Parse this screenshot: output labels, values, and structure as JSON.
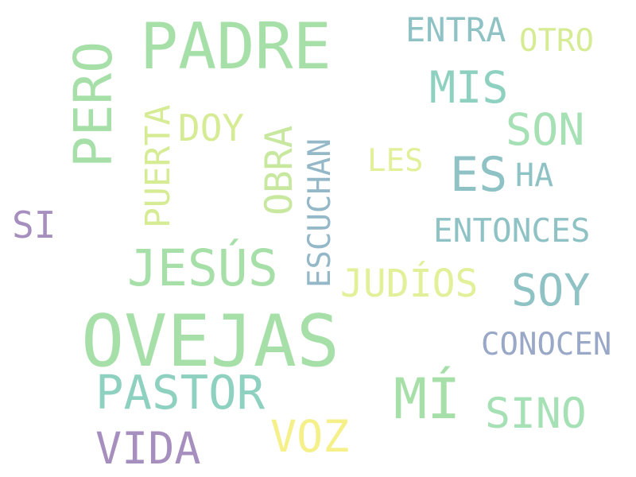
{
  "words": {
    "padre": {
      "text": "PADRE",
      "color": "#a6e0a8"
    },
    "ovejas": {
      "text": "OVEJAS",
      "color": "#a6e0a8"
    },
    "pero": {
      "text": "PERO",
      "color": "#a6e0a8"
    },
    "jesus": {
      "text": "JESÚS",
      "color": "#a6e0a8"
    },
    "pastor": {
      "text": "PASTOR",
      "color": "#8fd1c0"
    },
    "mi": {
      "text": "MÍ",
      "color": "#a6e0a8"
    },
    "vida": {
      "text": "VIDA",
      "color": "#a68fbf"
    },
    "voz": {
      "text": "VOZ",
      "color": "#f5f08a"
    },
    "sino": {
      "text": "SINO",
      "color": "#a6e0b5"
    },
    "soy": {
      "text": "SOY",
      "color": "#8fc2c4"
    },
    "es": {
      "text": "ES",
      "color": "#8fc2c4"
    },
    "son": {
      "text": "SON",
      "color": "#a6e0b5"
    },
    "mis": {
      "text": "MIS",
      "color": "#8fd1c0"
    },
    "entra": {
      "text": "ENTRA",
      "color": "#8fc2c4"
    },
    "otro": {
      "text": "OTRO",
      "color": "#d6ec94"
    },
    "doy": {
      "text": "DOY",
      "color": "#d6ec94"
    },
    "puerta": {
      "text": "PUERTA",
      "color": "#d6ec94"
    },
    "obra": {
      "text": "OBRA",
      "color": "#c8e8a0"
    },
    "escuchan": {
      "text": "ESCUCHAN",
      "color": "#94b8c8"
    },
    "les": {
      "text": "LES",
      "color": "#e2f09a"
    },
    "ha": {
      "text": "HA",
      "color": "#8fc2c4"
    },
    "entonces": {
      "text": "ENTONCES",
      "color": "#8fc2c4"
    },
    "judios": {
      "text": "JUDÍOS",
      "color": "#e2f09a"
    },
    "conocen": {
      "text": "CONOCEN",
      "color": "#9aa8c8"
    },
    "si": {
      "text": "SI",
      "color": "#a68fbf"
    }
  }
}
